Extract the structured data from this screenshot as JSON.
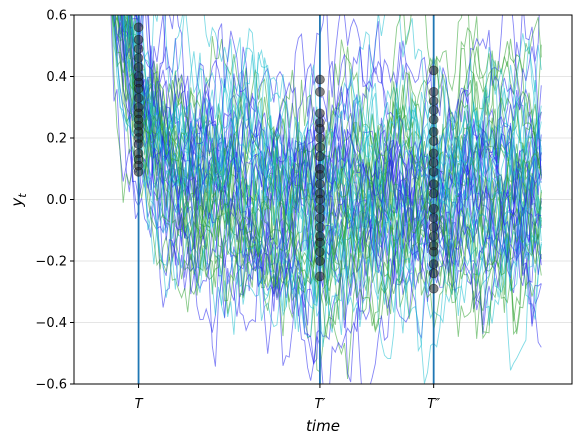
{
  "chart_data": {
    "type": "line",
    "title": "",
    "xlabel": "time",
    "ylabel": "y_t",
    "ylim": [
      -0.6,
      0.6
    ],
    "xlim": [
      -12,
      150
    ],
    "yticks": [
      -0.6,
      -0.4,
      -0.2,
      0.0,
      0.2,
      0.4,
      0.6
    ],
    "ytick_labels": [
      "−0.6",
      "−0.4",
      "−0.2",
      "0.0",
      "0.2",
      "0.4",
      "0.6"
    ],
    "grid": "horizontal",
    "legend": "none",
    "marked_times": [
      {
        "label": "T",
        "x": 9
      },
      {
        "label": "T′",
        "x": 68
      },
      {
        "label": "T″",
        "x": 105
      }
    ],
    "process": {
      "n_paths": 60,
      "n_steps": 140,
      "start_range": [
        0.6,
        1.0
      ],
      "mean_reversion": 0.09,
      "noise_sd": 0.085,
      "long_run_mean": 0.0,
      "colors": [
        "#2222ee",
        "#2ca02c",
        "#17becf"
      ],
      "alpha": 0.55
    },
    "cross_sections": [
      {
        "time": "T",
        "values": [
          0.56,
          0.52,
          0.49,
          0.46,
          0.43,
          0.4,
          0.38,
          0.36,
          0.33,
          0.3,
          0.28,
          0.26,
          0.24,
          0.22,
          0.2,
          0.18,
          0.15,
          0.13,
          0.11,
          0.09
        ]
      },
      {
        "time": "T′",
        "values": [
          0.39,
          0.35,
          0.28,
          0.25,
          0.23,
          0.2,
          0.17,
          0.14,
          0.1,
          0.08,
          0.05,
          0.02,
          0.0,
          -0.03,
          -0.06,
          -0.09,
          -0.12,
          -0.14,
          -0.17,
          -0.2,
          -0.25
        ]
      },
      {
        "time": "T″",
        "values": [
          0.42,
          0.35,
          0.32,
          0.29,
          0.26,
          0.22,
          0.19,
          0.15,
          0.12,
          0.09,
          0.05,
          0.02,
          -0.03,
          -0.06,
          -0.09,
          -0.12,
          -0.15,
          -0.17,
          -0.21,
          -0.24,
          -0.29
        ]
      }
    ]
  }
}
